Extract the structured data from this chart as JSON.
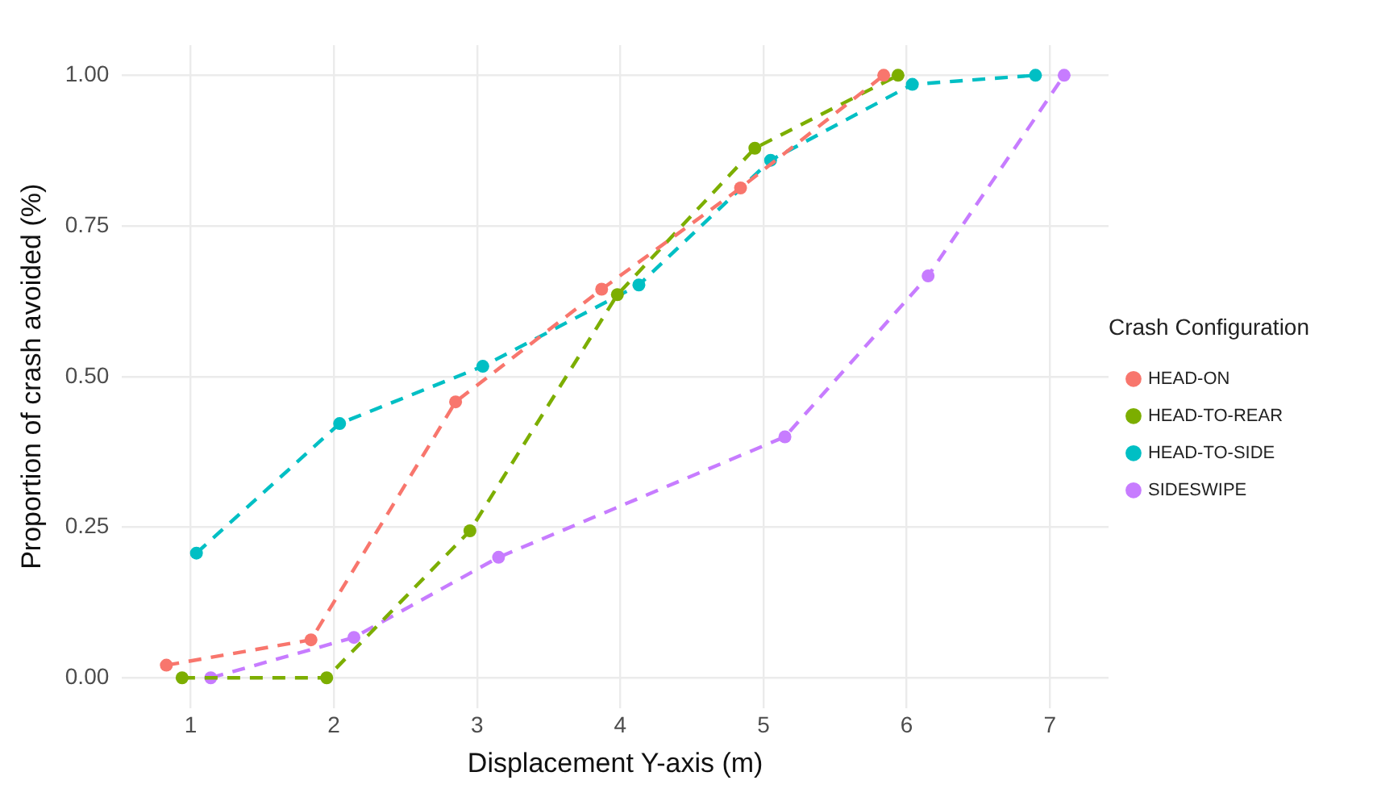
{
  "chart_data": {
    "type": "line",
    "xlabel": "Displacement Y-axis (m)",
    "ylabel": "Proportion of crash avoided (%)",
    "legend_title": "Crash Configuration",
    "legend": "right",
    "grid": true,
    "marker": "circle",
    "line_style": "dashed",
    "xlim": [
      0.52,
      7.41
    ],
    "xticks": [
      1,
      2,
      3,
      4,
      5,
      6,
      7
    ],
    "ylim": [
      -0.05,
      1.05
    ],
    "yticks": [
      {
        "value": 0,
        "label": "0.00"
      },
      {
        "value": 0.25,
        "label": "0.25"
      },
      {
        "value": 0.5,
        "label": "0.50"
      },
      {
        "value": 0.75,
        "label": "0.75"
      },
      {
        "value": 1,
        "label": "1.00"
      }
    ],
    "series": [
      {
        "name": "HEAD-ON",
        "color": "#f8766d",
        "x": [
          0.83,
          1.84,
          2.85,
          3.87,
          4.84,
          5.84
        ],
        "values": [
          0.021,
          0.063,
          0.458,
          0.645,
          0.813,
          1.0
        ]
      },
      {
        "name": "HEAD-TO-REAR",
        "color": "#7cae00",
        "x": [
          0.94,
          1.95,
          2.95,
          3.98,
          4.94,
          5.94
        ],
        "values": [
          0,
          0,
          0.244,
          0.636,
          0.879,
          1.0
        ]
      },
      {
        "name": "HEAD-TO-SIDE",
        "color": "#00bfc4",
        "x": [
          1.04,
          2.04,
          3.04,
          4.13,
          5.05,
          6.04,
          6.9
        ],
        "values": [
          0.207,
          0.422,
          0.517,
          0.652,
          0.859,
          0.985,
          1.0
        ]
      },
      {
        "name": "SIDESWIPE",
        "color": "#c77cff",
        "x": [
          1.14,
          2.14,
          3.15,
          5.15,
          6.15,
          7.1
        ],
        "values": [
          0,
          0.067,
          0.2,
          0.4,
          0.667,
          1.0
        ]
      }
    ]
  }
}
